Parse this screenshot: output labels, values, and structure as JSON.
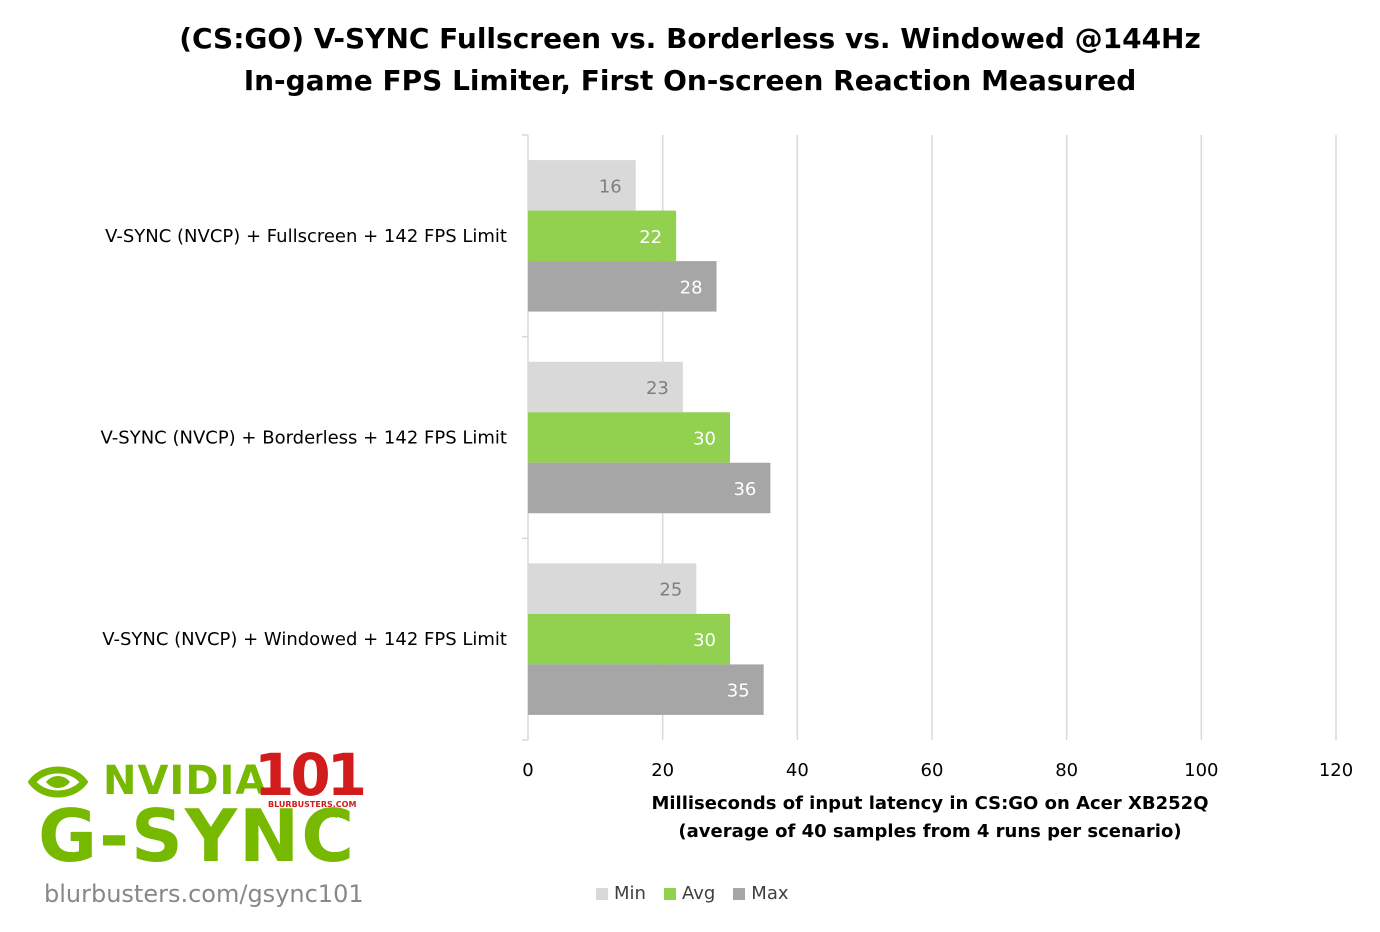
{
  "chart_data": {
    "type": "bar",
    "orientation": "horizontal",
    "title": "(CS:GO) V-SYNC Fullscreen vs. Borderless vs. Windowed @144Hz",
    "subtitle": "In-game FPS Limiter, First On-screen Reaction Measured",
    "categories": [
      "V-SYNC (NVCP) + Fullscreen + 142 FPS Limit",
      "V-SYNC (NVCP) + Borderless + 142 FPS Limit",
      "V-SYNC (NVCP) + Windowed + 142 FPS Limit"
    ],
    "series": [
      {
        "name": "Min",
        "values": [
          16,
          23,
          25
        ],
        "color": "#d9d9d9",
        "label_color": "#7f7f7f"
      },
      {
        "name": "Avg",
        "values": [
          22,
          30,
          30
        ],
        "color": "#92d050",
        "label_color": "#ffffff"
      },
      {
        "name": "Max",
        "values": [
          28,
          36,
          35
        ],
        "color": "#a6a6a6",
        "label_color": "#ffffff"
      }
    ],
    "xlabel": "Milliseconds of input latency in CS:GO on Acer XB252Q",
    "xlabel_line2": "(average of 40 samples from 4 runs per scenario)",
    "ylabel": "",
    "xlim": [
      0,
      120
    ],
    "xticks": [
      0,
      20,
      40,
      60,
      80,
      100,
      120
    ],
    "grid": true,
    "legend": "bottom"
  },
  "logo": {
    "brand": "NVIDIA",
    "product": "G-SYNC",
    "badge": "101",
    "badge_site": "BLURBUSTERS.COM",
    "trademark": "TM",
    "url": "blurbusters.com/gsync101"
  },
  "colors": {
    "nvidia_green": "#76b900",
    "blurbusters_red": "#d21c1c",
    "gridline": "#d9d9d9"
  }
}
